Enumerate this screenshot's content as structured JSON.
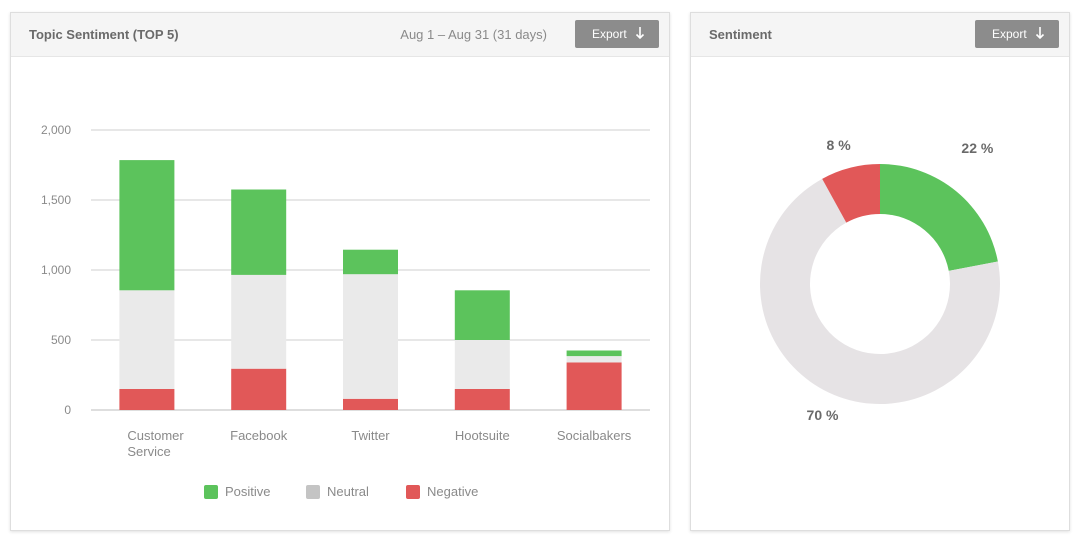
{
  "colors": {
    "positive": "#5cc35c",
    "neutral": "#eaeaea",
    "negative": "#e15858",
    "donut_neutral": "#e6e3e5"
  },
  "topic_panel": {
    "title": "Topic Sentiment (TOP 5)",
    "date_range": "Aug 1 – Aug 31 (31 days)",
    "export_label": "Export",
    "export_icon": "arrow-down-icon"
  },
  "sentiment_panel": {
    "title": "Sentiment",
    "export_label": "Export",
    "export_icon": "arrow-down-icon"
  },
  "legend": [
    {
      "label": "Positive",
      "color": "#5cc35c"
    },
    {
      "label": "Neutral",
      "color": "#c4c4c4"
    },
    {
      "label": "Negative",
      "color": "#e15858"
    }
  ],
  "chart_data": [
    {
      "type": "bar",
      "stacked": true,
      "title": "Topic Sentiment (TOP 5)",
      "categories": [
        "Customer Service",
        "Facebook",
        "Twitter",
        "Hootsuite",
        "Socialbakers"
      ],
      "category_lines": [
        [
          "Customer",
          "Service"
        ],
        [
          "Facebook"
        ],
        [
          "Twitter"
        ],
        [
          "Hootsuite"
        ],
        [
          "Socialbakers"
        ]
      ],
      "series": [
        {
          "name": "Negative",
          "values": [
            150,
            295,
            80,
            150,
            340
          ]
        },
        {
          "name": "Neutral",
          "values": [
            705,
            670,
            890,
            350,
            45
          ]
        },
        {
          "name": "Positive",
          "values": [
            930,
            610,
            175,
            355,
            40
          ]
        }
      ],
      "ylim": [
        0,
        2000
      ],
      "yticks": [
        0,
        500,
        1000,
        1500,
        2000
      ],
      "ytick_labels": [
        "0",
        "500",
        "1,000",
        "1,500",
        "2,000"
      ],
      "grid": true,
      "legend_position": "bottom"
    },
    {
      "type": "pie",
      "donut": true,
      "title": "Sentiment",
      "slices": [
        {
          "name": "Positive",
          "value": 22,
          "label": "22 %"
        },
        {
          "name": "Neutral",
          "value": 70,
          "label": "70 %"
        },
        {
          "name": "Negative",
          "value": 8,
          "label": "8 %"
        }
      ]
    }
  ]
}
